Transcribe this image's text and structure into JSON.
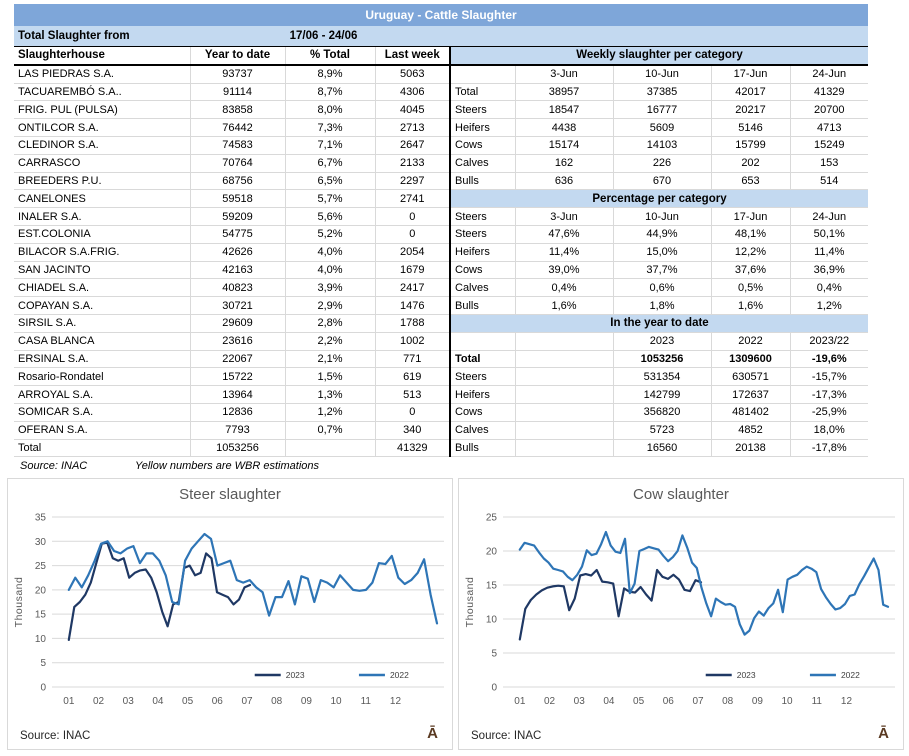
{
  "report": {
    "title": "Uruguay - Cattle Slaughter",
    "period_label": "Total Slaughter from",
    "period_value": "17/06 - 24/06",
    "source": "Source: INAC",
    "estimation_note": "Yellow numbers are WBR estimations"
  },
  "left_table": {
    "headers": [
      "Slaughterhouse",
      "Year to date",
      "% Total",
      "Last week"
    ],
    "rows": [
      [
        "LAS PIEDRAS S.A.",
        "93737",
        "8,9%",
        "5063"
      ],
      [
        "TACUAREMBÓ S.A..",
        "91114",
        "8,7%",
        "4306"
      ],
      [
        "FRIG. PUL (PULSA)",
        "83858",
        "8,0%",
        "4045"
      ],
      [
        "ONTILCOR S.A.",
        "76442",
        "7,3%",
        "2713"
      ],
      [
        "CLEDINOR S.A.",
        "74583",
        "7,1%",
        "2647"
      ],
      [
        "CARRASCO",
        "70764",
        "6,7%",
        "2133"
      ],
      [
        "BREEDERS P.U.",
        "68756",
        "6,5%",
        "2297"
      ],
      [
        "CANELONES",
        "59518",
        "5,7%",
        "2741"
      ],
      [
        "INALER S.A.",
        "59209",
        "5,6%",
        "0"
      ],
      [
        "EST.COLONIA",
        "54775",
        "5,2%",
        "0"
      ],
      [
        "BILACOR S.A.FRIG.",
        "42626",
        "4,0%",
        "2054"
      ],
      [
        "SAN JACINTO",
        "42163",
        "4,0%",
        "1679"
      ],
      [
        "CHIADEL S.A.",
        "40823",
        "3,9%",
        "2417"
      ],
      [
        "COPAYAN S.A.",
        "30721",
        "2,9%",
        "1476"
      ],
      [
        "SIRSIL S.A.",
        "29609",
        "2,8%",
        "1788"
      ],
      [
        "CASA BLANCA",
        "23616",
        "2,2%",
        "1002"
      ],
      [
        "ERSINAL S.A.",
        "22067",
        "2,1%",
        "771"
      ],
      [
        "Rosario-Rondatel",
        "15722",
        "1,5%",
        "619"
      ],
      [
        "ARROYAL S.A.",
        "13964",
        "1,3%",
        "513"
      ],
      [
        "SOMICAR S.A.",
        "12836",
        "1,2%",
        "0"
      ],
      [
        "OFERAN S.A.",
        "7793",
        "0,7%",
        "340"
      ]
    ],
    "total_row": [
      "Total",
      "1053256",
      "",
      "41329"
    ]
  },
  "weekly_table": {
    "band": "Weekly slaughter per category",
    "date_header": [
      "",
      "3-Jun",
      "10-Jun",
      "17-Jun",
      "24-Jun"
    ],
    "rows": [
      [
        "Total",
        "38957",
        "37385",
        "42017",
        "41329"
      ],
      [
        "Steers",
        "18547",
        "16777",
        "20217",
        "20700"
      ],
      [
        "Heifers",
        "4438",
        "5609",
        "5146",
        "4713"
      ],
      [
        "Cows",
        "15174",
        "14103",
        "15799",
        "15249"
      ],
      [
        "Calves",
        "162",
        "226",
        "202",
        "153"
      ],
      [
        "Bulls",
        "636",
        "670",
        "653",
        "514"
      ]
    ]
  },
  "percentage_table": {
    "band": "Percentage per category",
    "date_header": [
      "Steers",
      "3-Jun",
      "10-Jun",
      "17-Jun",
      "24-Jun"
    ],
    "rows": [
      [
        "Steers",
        "47,6%",
        "44,9%",
        "48,1%",
        "50,1%"
      ],
      [
        "Heifers",
        "11,4%",
        "15,0%",
        "12,2%",
        "11,4%"
      ],
      [
        "Cows",
        "39,0%",
        "37,7%",
        "37,6%",
        "36,9%"
      ],
      [
        "Calves",
        "0,4%",
        "0,6%",
        "0,5%",
        "0,4%"
      ],
      [
        "Bulls",
        "1,6%",
        "1,8%",
        "1,6%",
        "1,2%"
      ]
    ]
  },
  "ytd_table": {
    "band": "In the year to date",
    "year_header": [
      "",
      "",
      "2023",
      "2022",
      "2023/22"
    ],
    "rows": [
      [
        "Total",
        "",
        "1053256",
        "1309600",
        "-19,6%"
      ],
      [
        "Steers",
        "",
        "531354",
        "630571",
        "-15,7%"
      ],
      [
        "Heifers",
        "",
        "142799",
        "172637",
        "-17,3%"
      ],
      [
        "Cows",
        "",
        "356820",
        "481402",
        "-25,9%"
      ],
      [
        "Calves",
        "",
        "5723",
        "4852",
        "18,0%"
      ],
      [
        "Bulls",
        "",
        "16560",
        "20138",
        "-17,8%"
      ]
    ]
  },
  "colors": {
    "title_bar": "#7EA6D9",
    "band": "#C3D9F0",
    "series_2023": "#1F3864",
    "series_2022": "#2E75B6",
    "grid": "#D9D9D9",
    "axis_text": "#595959",
    "watermark": "#5A3A22"
  },
  "chart_data": [
    {
      "type": "line",
      "title": "Steer slaughter",
      "ylabel": "Thousand",
      "units": "thousand head per week",
      "ylim": [
        0,
        35
      ],
      "ytick_step": 5,
      "x_tick_labels": [
        "01",
        "02",
        "03",
        "04",
        "05",
        "06",
        "07",
        "08",
        "09",
        "10",
        "11",
        "12"
      ],
      "x_axis_months": 13,
      "grid": true,
      "legend_position": "inside-bottom-right",
      "source": "Source: INAC",
      "watermark": "Ā",
      "series": [
        {
          "name": "2023",
          "color": "#1F3864",
          "start_month": 0.5,
          "end_month": 6.6,
          "values": [
            9.7,
            16.5,
            17.5,
            19,
            21.5,
            25.5,
            29.5,
            29.7,
            26.5,
            26,
            26.5,
            22.5,
            23.5,
            24,
            24.2,
            22.5,
            19.5,
            15.5,
            12.5,
            17,
            17.5,
            24.5,
            25,
            23,
            23.5,
            27.5,
            26.5,
            19.5,
            19,
            18.5,
            17,
            18,
            20.5,
            21
          ]
        },
        {
          "name": "2022",
          "color": "#2E75B6",
          "start_month": 0.5,
          "end_month": 12.9,
          "values": [
            20,
            22.5,
            20.5,
            23,
            26,
            29.5,
            30,
            28,
            27.5,
            28.5,
            29,
            25.5,
            27.5,
            27.5,
            26,
            23,
            17.5,
            17,
            26,
            28.5,
            30,
            31.5,
            30.5,
            25,
            25.5,
            26,
            22,
            21.5,
            22,
            20.5,
            19.5,
            14.7,
            18.5,
            18.5,
            21.8,
            17,
            22.8,
            22.3,
            17.5,
            22,
            21.5,
            20.5,
            23,
            21.5,
            20,
            19.8,
            20,
            21.5,
            25.5,
            25.3,
            27,
            22.5,
            21.2,
            22,
            23.5,
            26.3,
            19,
            13.1
          ]
        }
      ]
    },
    {
      "type": "line",
      "title": "Cow slaughter",
      "ylabel": "Thousand",
      "units": "thousand head per week",
      "ylim": [
        0,
        25
      ],
      "ytick_step": 5,
      "x_tick_labels": [
        "01",
        "02",
        "03",
        "04",
        "05",
        "06",
        "07",
        "08",
        "09",
        "10",
        "11",
        "12"
      ],
      "x_axis_months": 13,
      "grid": true,
      "legend_position": "inside-bottom-right",
      "source": "Source: INAC",
      "watermark": "Ā",
      "series": [
        {
          "name": "2023",
          "color": "#1F3864",
          "start_month": 0.5,
          "end_month": 6.6,
          "values": [
            7,
            11.5,
            12.8,
            13.6,
            14.2,
            14.6,
            14.8,
            14.9,
            14.8,
            11.3,
            13,
            16.4,
            16.6,
            16.4,
            17.2,
            15.5,
            15.4,
            15.2,
            10.4,
            14.5,
            14,
            13.9,
            14.7,
            13.6,
            12.7,
            17.2,
            16.2,
            15.9,
            16.5,
            15.8,
            14.3,
            14.1,
            15.7,
            15.4
          ]
        },
        {
          "name": "2022",
          "color": "#2E75B6",
          "start_month": 0.5,
          "end_month": 12.9,
          "values": [
            20.2,
            21.2,
            21,
            20.8,
            19.8,
            18.9,
            18.3,
            17.4,
            17.2,
            17,
            16.2,
            15.7,
            16.5,
            17.7,
            20.1,
            19.4,
            19.6,
            21,
            22.8,
            20.8,
            19.9,
            19.7,
            21.8,
            13.8,
            15.2,
            20,
            20.3,
            20.6,
            20.4,
            20.2,
            19.3,
            18.5,
            19.1,
            20,
            22.3,
            20.5,
            18.3,
            17.5,
            14.6,
            12.3,
            10.4,
            13,
            12.5,
            12.1,
            12.2,
            11.8,
            9.2,
            7.7,
            8.3,
            10.1,
            11.1,
            10.5,
            11.6,
            12.3,
            14.3,
            11,
            15.8,
            16.2,
            16.5,
            17.2,
            17.7,
            17.4,
            16.9,
            14.4,
            13.2,
            12.2,
            11.4,
            11.6,
            12.2,
            13.4,
            13.6,
            15.1,
            16.3,
            17.6,
            18.9,
            17.2,
            12.1,
            11.8
          ]
        }
      ]
    }
  ]
}
